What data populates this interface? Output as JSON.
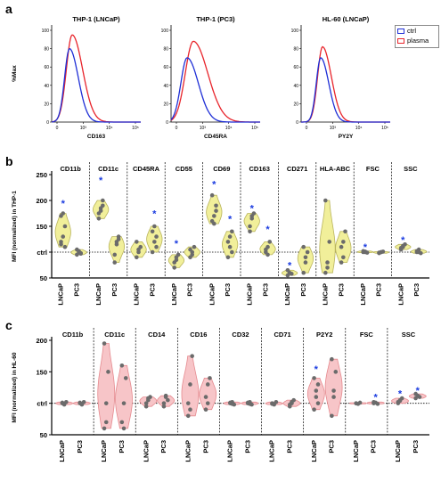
{
  "panels": {
    "a": "a",
    "b": "b",
    "c": "c"
  },
  "colors": {
    "ctrl": "#1f2fd6",
    "plasma": "#e8242b",
    "b_fill": "#f1ef9a",
    "b_stroke": "#b9b45c",
    "c_fill": "#f7c5c8",
    "c_stroke": "#e58a8f",
    "dot": "#6b6b6b",
    "star": "#1a3be0"
  },
  "legend": [
    {
      "label": "ctrl",
      "color": "#1f2fd6"
    },
    {
      "label": "plasma",
      "color": "#e8242b"
    }
  ],
  "histograms": {
    "ylabel": "%Max",
    "yticks": [
      "0",
      "20",
      "40",
      "60",
      "80",
      "100"
    ],
    "xticks": [
      "0",
      "10³",
      "10⁴",
      "10⁵"
    ],
    "plots": [
      {
        "title": "THP-1 (LNCaP)",
        "xlabel": "CD163",
        "ctrl_peak": 0.8,
        "plasma_peak": 0.95,
        "ctrl_center": 0.2,
        "plasma_center": 0.23,
        "ctrl_width": 0.055,
        "plasma_width": 0.065
      },
      {
        "title": "THP-1 (PC3)",
        "xlabel": "CD45RA",
        "ctrl_peak": 0.7,
        "plasma_peak": 0.88,
        "ctrl_center": 0.18,
        "plasma_center": 0.25,
        "ctrl_width": 0.07,
        "plasma_width": 0.09
      },
      {
        "title": "HL-60 (LNCaP)",
        "xlabel": "PY2Y",
        "ctrl_peak": 0.7,
        "plasma_peak": 0.82,
        "ctrl_center": 0.22,
        "plasma_center": 0.24,
        "ctrl_width": 0.05,
        "plasma_width": 0.055
      }
    ]
  },
  "chart_data": [
    {
      "type": "violin",
      "panel": "b",
      "ylabel": "MFI (normalized) in THP-1",
      "ylim": [
        50,
        250
      ],
      "yticks": [
        "50",
        "ctrl",
        "150",
        "200",
        "250"
      ],
      "ctrl_line": 100,
      "xcats": [
        "LNCaP",
        "PC3"
      ],
      "markers": [
        "CD11b",
        "CD11c",
        "CD45RA",
        "CD55",
        "CD69",
        "CD163",
        "CD271",
        "HLA-ABC",
        "FSC",
        "SSC"
      ],
      "groups": [
        {
          "marker": "CD11b",
          "LNCaP": [
            120,
            130,
            150,
            170,
            175,
            110,
            115
          ],
          "PC3": [
            95,
            100,
            98,
            105,
            102,
            97
          ],
          "star": [
            true,
            false
          ],
          "star_y": [
            195,
            0
          ]
        },
        {
          "marker": "CD11c",
          "LNCaP": [
            175,
            185,
            200,
            165,
            180,
            190
          ],
          "PC3": [
            95,
            120,
            130,
            80,
            115,
            125
          ],
          "star": [
            true,
            false
          ],
          "star_y": [
            240,
            0
          ]
        },
        {
          "marker": "CD45RA",
          "LNCaP": [
            90,
            100,
            110,
            120,
            105
          ],
          "PC3": [
            100,
            120,
            130,
            140,
            150,
            110
          ],
          "star": [
            false,
            true
          ],
          "star_y": [
            0,
            175
          ]
        },
        {
          "marker": "CD55",
          "LNCaP": [
            80,
            90,
            95,
            70,
            85
          ],
          "PC3": [
            90,
            100,
            110,
            105,
            95
          ],
          "star": [
            true,
            false
          ],
          "star_y": [
            117,
            0
          ]
        },
        {
          "marker": "CD69",
          "LNCaP": [
            160,
            170,
            190,
            210,
            155,
            180
          ],
          "PC3": [
            120,
            130,
            140,
            90,
            110,
            100
          ],
          "star": [
            true,
            true
          ],
          "star_y": [
            232,
            165
          ]
        },
        {
          "marker": "CD163",
          "LNCaP": [
            150,
            165,
            175,
            140,
            170
          ],
          "PC3": [
            100,
            110,
            120,
            105,
            95
          ],
          "star": [
            true,
            true
          ],
          "star_y": [
            185,
            145
          ]
        },
        {
          "marker": "CD271",
          "LNCaP": [
            55,
            60,
            58,
            65
          ],
          "PC3": [
            60,
            80,
            100,
            110,
            90
          ],
          "star": [
            true,
            false
          ],
          "star_y": [
            75,
            0
          ]
        },
        {
          "marker": "HLA-ABC",
          "LNCaP": [
            60,
            80,
            120,
            200,
            70
          ],
          "PC3": [
            80,
            120,
            140,
            110,
            90
          ],
          "star": [
            false,
            false
          ],
          "star_y": [
            0,
            0
          ]
        },
        {
          "marker": "FSC",
          "LNCaP": [
            100,
            101,
            99,
            102,
            100
          ],
          "PC3": [
            98,
            100,
            101,
            99,
            100
          ],
          "star": [
            true,
            false
          ],
          "star_y": [
            110,
            0
          ]
        },
        {
          "marker": "SSC",
          "LNCaP": [
            105,
            110,
            115,
            108,
            112
          ],
          "PC3": [
            100,
            105,
            98,
            102,
            100
          ],
          "star": [
            true,
            false
          ],
          "star_y": [
            124,
            0
          ]
        }
      ]
    },
    {
      "type": "violin",
      "panel": "c",
      "ylabel": "MFI (normalized) in HL-60",
      "ylim": [
        50,
        200
      ],
      "yticks": [
        "50",
        "ctrl",
        "150",
        "200"
      ],
      "ctrl_line": 100,
      "xcats": [
        "LNCaP",
        "PC3"
      ],
      "markers": [
        "CD11b",
        "CD11c",
        "CD14",
        "CD16",
        "CD32",
        "CD71",
        "P2Y2",
        "FSC",
        "SSC"
      ],
      "groups": [
        {
          "marker": "CD11b",
          "LNCaP": [
            100,
            98,
            102,
            101,
            99
          ],
          "PC3": [
            100,
            98,
            102,
            101,
            99
          ],
          "star": [
            false,
            false
          ],
          "star_y": [
            0,
            0
          ]
        },
        {
          "marker": "CD11c",
          "LNCaP": [
            60,
            100,
            150,
            195,
            70
          ],
          "PC3": [
            70,
            100,
            140,
            160,
            60
          ],
          "star": [
            false,
            false
          ],
          "star_y": [
            0,
            0
          ]
        },
        {
          "marker": "CD14",
          "LNCaP": [
            100,
            105,
            110,
            95,
            108
          ],
          "PC3": [
            100,
            110,
            105,
            95,
            112
          ],
          "star": [
            false,
            false
          ],
          "star_y": [
            0,
            0
          ]
        },
        {
          "marker": "CD16",
          "LNCaP": [
            80,
            130,
            175,
            100,
            90
          ],
          "PC3": [
            90,
            130,
            140,
            110,
            100
          ],
          "star": [
            false,
            false
          ],
          "star_y": [
            0,
            0
          ]
        },
        {
          "marker": "CD32",
          "LNCaP": [
            100,
            102,
            98,
            101,
            99
          ],
          "PC3": [
            100,
            102,
            98,
            101,
            99
          ],
          "star": [
            false,
            false
          ],
          "star_y": [
            0,
            0
          ]
        },
        {
          "marker": "CD71",
          "LNCaP": [
            100,
            98,
            102,
            99
          ],
          "PC3": [
            95,
            100,
            105,
            98,
            102
          ],
          "star": [
            false,
            false
          ],
          "star_y": [
            0,
            0
          ]
        },
        {
          "marker": "P2Y2",
          "LNCaP": [
            90,
            110,
            130,
            140,
            120,
            100
          ],
          "PC3": [
            80,
            110,
            150,
            170,
            120
          ],
          "star": [
            true,
            false
          ],
          "star_y": [
            155,
            0
          ]
        },
        {
          "marker": "FSC",
          "LNCaP": [
            100,
            99,
            101,
            100
          ],
          "PC3": [
            100,
            101,
            99,
            102
          ],
          "star": [
            false,
            true
          ],
          "star_y": [
            0,
            110
          ]
        },
        {
          "marker": "SSC",
          "LNCaP": [
            102,
            105,
            108,
            100,
            104
          ],
          "PC3": [
            108,
            112,
            110,
            115
          ],
          "star": [
            true,
            true
          ],
          "star_y": [
            116,
            121
          ]
        }
      ]
    }
  ]
}
